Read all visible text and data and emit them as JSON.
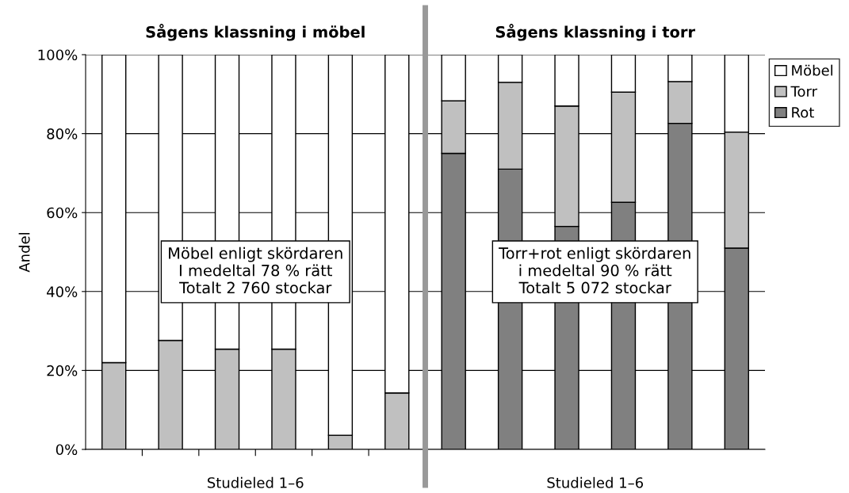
{
  "chart_data": {
    "type": "bar",
    "stacked": true,
    "ylabel": "Andel",
    "categories": [
      null,
      null,
      null,
      null,
      null,
      null,
      null,
      null,
      null,
      null,
      null,
      null
    ],
    "series": [
      {
        "name": "Rot",
        "color": "#808080",
        "values": [
          null,
          null,
          null,
          null,
          null,
          null,
          75,
          71,
          56.5,
          62.6,
          82.6,
          51
        ]
      },
      {
        "name": "Torr",
        "color": "#c0c0c0",
        "values": [
          22,
          27.6,
          25.4,
          25.4,
          3.6,
          14.3,
          13.3,
          22,
          30.5,
          27.9,
          10.6,
          29.4
        ]
      },
      {
        "name": "Möbel",
        "color": "#ffffff",
        "values": [
          78,
          72.4,
          74.6,
          74.6,
          96.4,
          85.7,
          11.7,
          7,
          13,
          9.5,
          6.8,
          19.6
        ]
      }
    ],
    "ylim": [
      0,
      100
    ],
    "yticks": [
      {
        "value": 0,
        "label": "0%"
      },
      {
        "value": 20,
        "label": "20%"
      },
      {
        "value": 40,
        "label": "40%"
      },
      {
        "value": 60,
        "label": "60%"
      },
      {
        "value": 80,
        "label": "80%"
      },
      {
        "value": 100,
        "label": "100%"
      }
    ],
    "grid": "y",
    "tick_labels": "y",
    "legend": "top right",
    "annotations": [
      "Sågens klassning i möbel",
      "Sågens klassning i torr",
      "Studieled 1–6",
      "Studieled 1–6",
      "Möbel enligt skördaren\nI medeltal 78 % rätt\nTotalt 2 760 stockar",
      "Torr+rot enligt skördaren\ni medeltal 90 % rätt\nTotalt 5 072 stockar"
    ]
  }
}
